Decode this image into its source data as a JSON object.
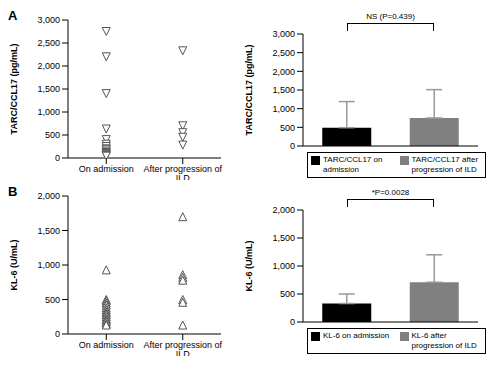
{
  "chart_data": [
    {
      "type": "scatter",
      "title": "A",
      "ylabel": "TARC/CCL17 (pg/mL)",
      "categories": [
        "On admission",
        "After progression of ILD"
      ],
      "points": [
        [
          2750,
          2200,
          1400,
          630,
          400,
          300,
          250,
          200,
          180,
          150,
          120,
          100,
          80,
          60,
          50,
          40
        ],
        [
          2330,
          700,
          550,
          450,
          280
        ]
      ],
      "ylim": [
        0,
        3000
      ],
      "yticks": [
        0,
        500,
        {
          "value": 1000,
          "label": "1,000"
        },
        {
          "value": 1500,
          "label": "1,500"
        },
        {
          "value": 2000,
          "label": "2,000"
        },
        {
          "value": 2500,
          "label": "2,500"
        },
        {
          "value": 3000,
          "label": "3,000"
        }
      ],
      "marker": "triangle_down",
      "color": "#555555"
    },
    {
      "type": "bar",
      "ylabel": "TARC/CCL17 (pg/mL)",
      "categories": [
        "TARC/CCL17 on admission",
        "TARC/CCL17 after progression of ILD"
      ],
      "values": [
        490,
        750
      ],
      "errors": [
        700,
        760
      ],
      "colors": [
        "#000000",
        "#808080"
      ],
      "ylim": [
        0,
        3000
      ],
      "yticks": [
        0,
        500,
        {
          "value": 1000,
          "label": "1,000"
        },
        {
          "value": 1500,
          "label": "1,500"
        },
        {
          "value": 2000,
          "label": "2,000"
        },
        {
          "value": 2500,
          "label": "2,500"
        },
        {
          "value": 3000,
          "label": "3,000"
        }
      ],
      "tick_labels": "y",
      "annotation": "NS (P=0.439)"
    },
    {
      "type": "scatter",
      "title": "B",
      "ylabel": "KL-6 (U/mL)",
      "categories": [
        "On admission",
        "After progression of ILD"
      ],
      "points": [
        [
          930,
          500,
          480,
          450,
          420,
          380,
          350,
          320,
          300,
          280,
          250,
          220,
          200,
          180,
          150,
          130
        ],
        [
          1700,
          860,
          820,
          780,
          500,
          460,
          130
        ]
      ],
      "ylim": [
        0,
        2000
      ],
      "yticks": [
        0,
        500,
        {
          "value": 1000,
          "label": "1,000"
        },
        {
          "value": 1500,
          "label": "1,500"
        },
        {
          "value": 2000,
          "label": "2,000"
        }
      ],
      "marker": "triangle",
      "color": "#555555"
    },
    {
      "type": "bar",
      "ylabel": "KL-6 (U/mL)",
      "categories": [
        "KL-6 on admission",
        "KL-6 after progression of ILD"
      ],
      "values": [
        330,
        710
      ],
      "errors": [
        170,
        490
      ],
      "colors": [
        "#000000",
        "#808080"
      ],
      "ylim": [
        0,
        2000
      ],
      "yticks": [
        0,
        500,
        {
          "value": 1000,
          "label": "1,000"
        },
        {
          "value": 1500,
          "label": "1,500"
        },
        {
          "value": 2000,
          "label": "2,000"
        }
      ],
      "tick_labels": "y",
      "annotation": "*P=0.0028"
    }
  ]
}
